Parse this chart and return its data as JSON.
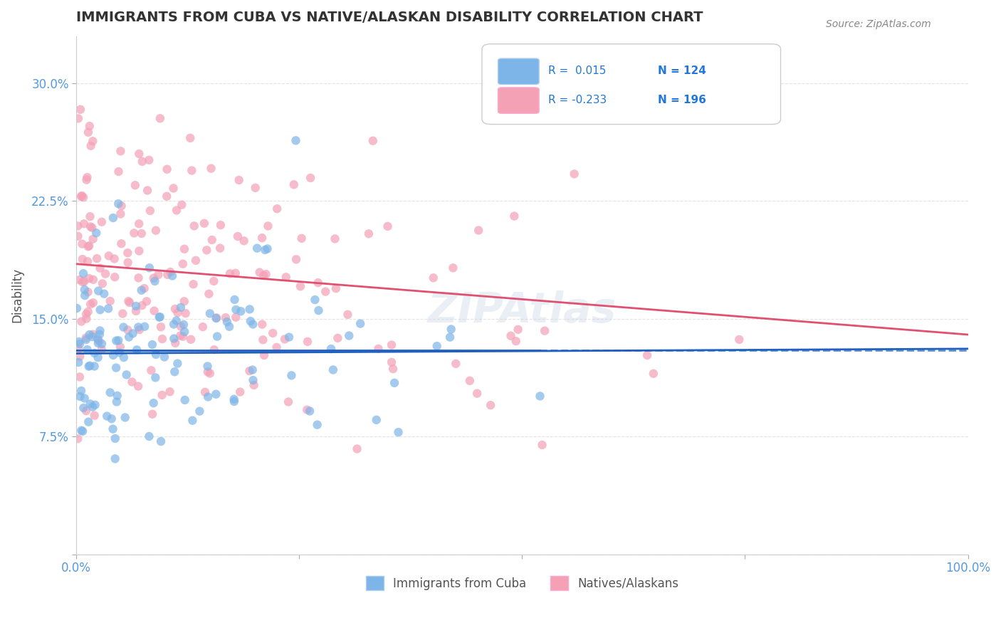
{
  "title": "IMMIGRANTS FROM CUBA VS NATIVE/ALASKAN DISABILITY CORRELATION CHART",
  "source_text": "Source: ZipAtlas.com",
  "xlabel": "",
  "ylabel": "Disability",
  "xlim": [
    0,
    100
  ],
  "ylim": [
    0,
    33
  ],
  "yticks": [
    0,
    7.5,
    15.0,
    22.5,
    30.0
  ],
  "xticks": [
    0,
    25,
    50,
    75,
    100
  ],
  "xtick_labels": [
    "0.0%",
    "",
    "",
    "",
    "100.0%"
  ],
  "ytick_labels": [
    "",
    "7.5%",
    "15.0%",
    "22.5%",
    "30.0%"
  ],
  "blue_r": "0.015",
  "blue_n": 124,
  "pink_r": "-0.233",
  "pink_n": 196,
  "blue_label": "Immigrants from Cuba",
  "pink_label": "Natives/Alaskans",
  "blue_color": "#7EB5E8",
  "pink_color": "#F4A0B5",
  "blue_line_color": "#2060C0",
  "pink_line_color": "#E05070",
  "background_color": "#FFFFFF",
  "grid_color": "#DDDDDD",
  "title_color": "#333333",
  "axis_label_color": "#555555",
  "tick_color": "#5599DD",
  "legend_r_color": "#2277DD",
  "legend_n_color": "#2277DD",
  "watermark_text": "ZIPAtlas",
  "blue_trend_intercept": 12.8,
  "blue_trend_slope": 0.003,
  "pink_trend_intercept": 18.5,
  "pink_trend_slope": -0.045,
  "dashed_line_y": 13.0,
  "seed": 42
}
